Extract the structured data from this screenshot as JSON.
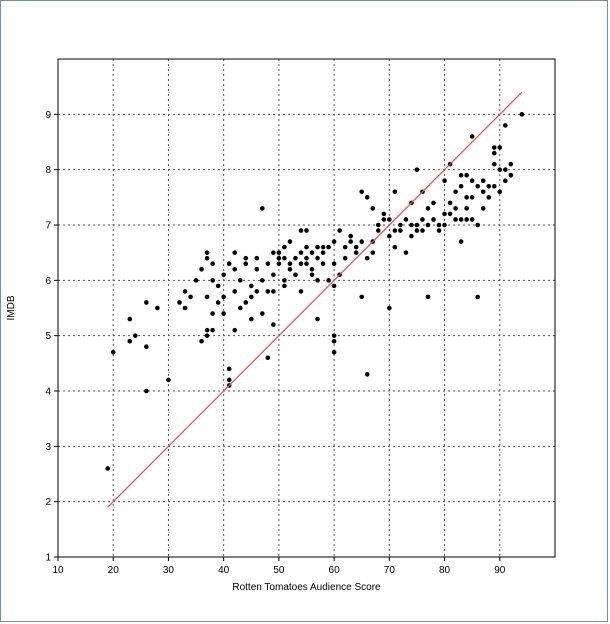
{
  "chart_data": {
    "type": "scatter",
    "title": "",
    "xlabel": "Rotten Tomatoes Audience Score",
    "ylabel": "IMDB",
    "xlim": [
      10,
      100
    ],
    "ylim": [
      1,
      10
    ],
    "xticks": [
      10,
      20,
      30,
      40,
      50,
      60,
      70,
      80,
      90
    ],
    "yticks": [
      1,
      2,
      3,
      4,
      5,
      6,
      7,
      8,
      9
    ],
    "grid": true,
    "legend": "none",
    "colors": {
      "points": "#000000",
      "fit_line": "#e8503a",
      "grid": "#555555"
    },
    "fit_line": {
      "x": [
        19,
        94
      ],
      "y": [
        1.9,
        9.4
      ]
    },
    "series": [
      {
        "points": [
          [
            19,
            2.6
          ],
          [
            20,
            4.7
          ],
          [
            23,
            4.9
          ],
          [
            23,
            5.3
          ],
          [
            24,
            5.0
          ],
          [
            26,
            5.6
          ],
          [
            26,
            4.8
          ],
          [
            26,
            4.0
          ],
          [
            28,
            5.5
          ],
          [
            30,
            4.2
          ],
          [
            32,
            5.6
          ],
          [
            33,
            5.5
          ],
          [
            33,
            5.8
          ],
          [
            34,
            5.7
          ],
          [
            35,
            6.0
          ],
          [
            36,
            6.2
          ],
          [
            36,
            4.9
          ],
          [
            37,
            5.0
          ],
          [
            37,
            5.1
          ],
          [
            37,
            6.4
          ],
          [
            37,
            6.5
          ],
          [
            37,
            5.7
          ],
          [
            38,
            5.1
          ],
          [
            38,
            5.4
          ],
          [
            38,
            6.0
          ],
          [
            38,
            6.3
          ],
          [
            39,
            5.9
          ],
          [
            39,
            5.6
          ],
          [
            40,
            6.1
          ],
          [
            40,
            5.7
          ],
          [
            40,
            5.4
          ],
          [
            41,
            6.3
          ],
          [
            41,
            4.4
          ],
          [
            41,
            4.2
          ],
          [
            41,
            4.1
          ],
          [
            42,
            6.5
          ],
          [
            42,
            6.2
          ],
          [
            42,
            5.8
          ],
          [
            42,
            5.1
          ],
          [
            43,
            5.5
          ],
          [
            43,
            6.0
          ],
          [
            44,
            6.3
          ],
          [
            44,
            6.4
          ],
          [
            44,
            5.6
          ],
          [
            45,
            5.3
          ],
          [
            45,
            5.9
          ],
          [
            45,
            5.7
          ],
          [
            46,
            6.2
          ],
          [
            46,
            6.4
          ],
          [
            46,
            5.8
          ],
          [
            47,
            6.0
          ],
          [
            47,
            7.3
          ],
          [
            47,
            5.4
          ],
          [
            48,
            5.8
          ],
          [
            48,
            6.3
          ],
          [
            48,
            4.6
          ],
          [
            49,
            6.1
          ],
          [
            49,
            5.8
          ],
          [
            49,
            6.5
          ],
          [
            49,
            5.2
          ],
          [
            50,
            6.4
          ],
          [
            50,
            6.3
          ],
          [
            50,
            6.5
          ],
          [
            51,
            6.0
          ],
          [
            51,
            6.4
          ],
          [
            51,
            6.6
          ],
          [
            51,
            5.9
          ],
          [
            52,
            6.7
          ],
          [
            52,
            6.3
          ],
          [
            52,
            6.2
          ],
          [
            53,
            6.4
          ],
          [
            53,
            6.1
          ],
          [
            54,
            6.5
          ],
          [
            54,
            6.9
          ],
          [
            54,
            6.3
          ],
          [
            54,
            5.8
          ],
          [
            55,
            6.9
          ],
          [
            55,
            6.3
          ],
          [
            55,
            6.6
          ],
          [
            55,
            6.4
          ],
          [
            56,
            6.5
          ],
          [
            56,
            6.1
          ],
          [
            56,
            6.2
          ],
          [
            57,
            6.4
          ],
          [
            57,
            6.6
          ],
          [
            57,
            6.0
          ],
          [
            57,
            5.3
          ],
          [
            58,
            6.5
          ],
          [
            58,
            6.3
          ],
          [
            58,
            6.6
          ],
          [
            59,
            6.6
          ],
          [
            59,
            6.0
          ],
          [
            60,
            6.7
          ],
          [
            60,
            6.3
          ],
          [
            60,
            5.9
          ],
          [
            60,
            5.0
          ],
          [
            60,
            4.9
          ],
          [
            60,
            4.7
          ],
          [
            61,
            6.9
          ],
          [
            61,
            6.1
          ],
          [
            62,
            6.4
          ],
          [
            62,
            6.6
          ],
          [
            63,
            6.8
          ],
          [
            63,
            6.7
          ],
          [
            64,
            6.6
          ],
          [
            64,
            6.5
          ],
          [
            65,
            6.7
          ],
          [
            65,
            7.6
          ],
          [
            65,
            5.7
          ],
          [
            66,
            7.5
          ],
          [
            66,
            6.4
          ],
          [
            66,
            4.3
          ],
          [
            67,
            7.3
          ],
          [
            67,
            6.7
          ],
          [
            67,
            6.5
          ],
          [
            68,
            7.0
          ],
          [
            68,
            6.9
          ],
          [
            69,
            7.2
          ],
          [
            69,
            7.1
          ],
          [
            70,
            7.1
          ],
          [
            70,
            6.8
          ],
          [
            70,
            5.5
          ],
          [
            71,
            7.6
          ],
          [
            71,
            6.9
          ],
          [
            71,
            6.6
          ],
          [
            72,
            7.0
          ],
          [
            72,
            6.9
          ],
          [
            73,
            7.1
          ],
          [
            73,
            6.5
          ],
          [
            74,
            7.4
          ],
          [
            74,
            7.0
          ],
          [
            74,
            6.8
          ],
          [
            75,
            8.0
          ],
          [
            75,
            7.0
          ],
          [
            75,
            6.9
          ],
          [
            76,
            7.1
          ],
          [
            76,
            6.9
          ],
          [
            76,
            7.6
          ],
          [
            77,
            7.0
          ],
          [
            77,
            5.7
          ],
          [
            77,
            7.3
          ],
          [
            78,
            7.4
          ],
          [
            78,
            7.1
          ],
          [
            79,
            7.0
          ],
          [
            79,
            6.9
          ],
          [
            80,
            7.8
          ],
          [
            80,
            7.2
          ],
          [
            80,
            7.0
          ],
          [
            81,
            7.4
          ],
          [
            81,
            7.2
          ],
          [
            81,
            8.1
          ],
          [
            82,
            7.6
          ],
          [
            82,
            7.3
          ],
          [
            82,
            7.1
          ],
          [
            83,
            7.9
          ],
          [
            83,
            7.7
          ],
          [
            83,
            7.1
          ],
          [
            83,
            6.7
          ],
          [
            84,
            7.9
          ],
          [
            84,
            7.5
          ],
          [
            84,
            7.3
          ],
          [
            84,
            7.1
          ],
          [
            85,
            8.6
          ],
          [
            85,
            7.8
          ],
          [
            85,
            7.5
          ],
          [
            85,
            7.1
          ],
          [
            86,
            7.7
          ],
          [
            86,
            7.0
          ],
          [
            86,
            5.7
          ],
          [
            87,
            7.8
          ],
          [
            87,
            7.6
          ],
          [
            87,
            7.3
          ],
          [
            88,
            7.7
          ],
          [
            88,
            7.5
          ],
          [
            89,
            8.4
          ],
          [
            89,
            8.3
          ],
          [
            89,
            8.1
          ],
          [
            89,
            7.7
          ],
          [
            90,
            8.4
          ],
          [
            90,
            8.0
          ],
          [
            90,
            7.6
          ],
          [
            91,
            8.8
          ],
          [
            91,
            8.0
          ],
          [
            91,
            7.8
          ],
          [
            92,
            8.1
          ],
          [
            92,
            7.9
          ],
          [
            94,
            9.0
          ]
        ]
      }
    ]
  }
}
